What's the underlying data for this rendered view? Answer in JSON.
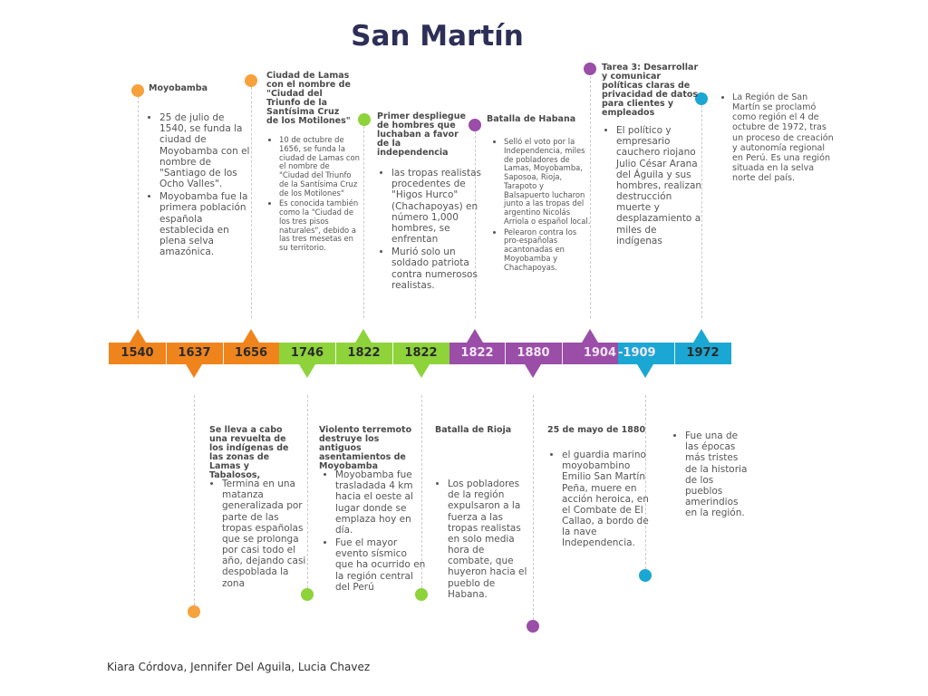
{
  "title": "San Martín",
  "footer": "Kiara Córdova, Jennifer Del Aguila, Lucia Chavez",
  "colors": {
    "title": "#2d2f58",
    "orange": "#f0841c",
    "dot_orange": "#f7a13c",
    "green": "#8ed33a",
    "purple": "#9a4ea7",
    "blue": "#1ba7d3"
  },
  "timeline": {
    "years": [
      "1540",
      "1637",
      "1656",
      "1746",
      "1822",
      "1822",
      "1822",
      "1880",
      "1904",
      "-1909",
      "1972"
    ]
  },
  "events_top": [
    {
      "title": "Moyobamba",
      "items": [
        "25 de julio de 1540, se funda la ciudad de Moyobamba con el nombre de \"Santiago de los Ocho Valles\".",
        "Moyobamba fue la primera población española establecida en plena selva amazónica."
      ]
    },
    {
      "title": "Ciudad de Lamas con el nombre de \"Ciudad del Triunfo de la Santísima Cruz de los Motilones\"",
      "items": [
        "10 de octubre de 1656, se funda la ciudad de Lamas con el nombre de \"Ciudad del Triunfo de la Santísima Cruz de los Motilones\"",
        "Es conocida también como la \"Ciudad de los tres pisos naturales\", debido a las tres mesetas en su territorio."
      ]
    },
    {
      "title": "Primer despliegue de hombres que luchaban a favor de la independencia",
      "items": [
        " las tropas realistas procedentes de \"Higos Hurco\" (Chachapoyas) en número 1,000 hombres, se enfrentan",
        "Murió solo un soldado patriota contra numerosos realistas."
      ]
    },
    {
      "title": "Batalla de Habana",
      "items": [
        "Selló el voto por la Independencia, miles de pobladores de Lamas, Moyobamba, Saposoa, Rioja, Tarapoto y Balsapuerto lucharon junto a las tropas del argentino Nicolás Arriola o español local.",
        "Pelearon contra los pro-españolas acantonadas en Moyobamba y Chachapoyas."
      ]
    },
    {
      "title": "Tarea 3: Desarrollar y comunicar políticas claras de privacidad de datos para clientes y empleados",
      "items": [
        "El político y empresario cauchero riojano Julio César Arana del Águila y sus hombres, realizan destrucción muerte y desplazamiento a miles de indígenas"
      ]
    },
    {
      "title": "",
      "items": [
        "La Región de San Martín se proclamó como región el 4 de octubre de 1972, tras un proceso de creación y autonomía regional en Perú. Es una región situada en la selva norte del país."
      ]
    }
  ],
  "events_bottom": [
    {
      "title": "Se lleva a cabo una revuelta de los indígenas de las zonas de Lamas y Tabalosos,",
      "items": [
        "Termina en una matanza generalizada por parte de las tropas españolas que se prolonga por casi todo el año, dejando casi despoblada la zona"
      ]
    },
    {
      "title": "Violento terremoto destruye los antiguos asentamientos de Moyobamba",
      "items": [
        "Moyobamba fue trasladada 4 km hacia el oeste al lugar donde se emplaza hoy en día.",
        "Fue el mayor evento sísmico que ha ocurrido en la región central del Perú"
      ]
    },
    {
      "title": "Batalla de Rioja",
      "items": [
        "Los pobladores de la región expulsaron a la fuerza a las tropas realistas en solo media hora de combate, que huyeron hacia el pueblo de Habana."
      ]
    },
    {
      "title": "25 de mayo de 1880",
      "items": [
        "el guardia marino moyobambino Emilio San Martín Peña, muere en acción heroica, en el Combate de El Callao, a bordo de la nave Independencia."
      ]
    },
    {
      "title": "",
      "items": [
        "Fue una de las épocas más tristes de la historia de los pueblos amerindios en la región."
      ]
    }
  ]
}
